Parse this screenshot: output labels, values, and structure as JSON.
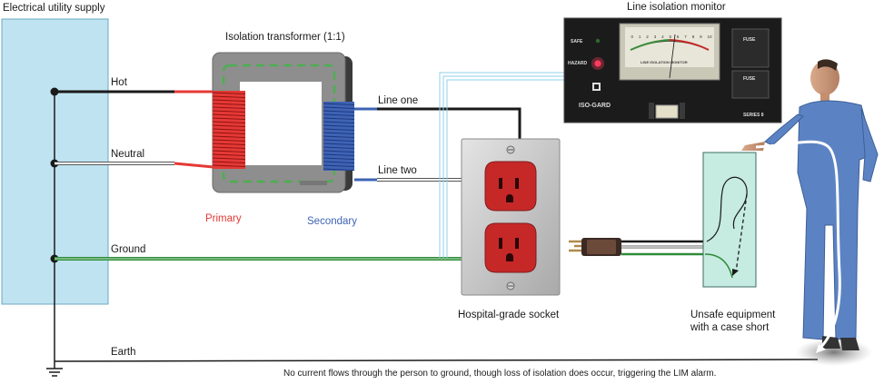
{
  "labels": {
    "utility_supply": "Electrical utility supply",
    "hot": "Hot",
    "neutral": "Neutral",
    "ground": "Ground",
    "earth": "Earth",
    "transformer": "Isolation transformer (1:1)",
    "primary": "Primary",
    "secondary": "Secondary",
    "line_one": "Line one",
    "line_two": "Line two",
    "monitor": "Line isolation monitor",
    "socket": "Hospital-grade socket",
    "equipment_line1": "Unsafe equipment",
    "equipment_line2": "with a case short",
    "caption": "No current flows through the person to ground, though loss of isolation does occur, triggering the LIM alarm."
  },
  "monitor_panel": {
    "safe": "SAFE",
    "hazard": "HAZARD",
    "brand": "ISO-GARD",
    "meter_title": "LINE ISOLATION MONITOR",
    "fuse": "FUSE",
    "series": "SERIES 8",
    "meter_scale": [
      "0",
      "1",
      "2",
      "3",
      "4",
      "5",
      "6",
      "7",
      "8",
      "9",
      "10"
    ]
  },
  "colors": {
    "supply_box": "#bfe3f0",
    "primary_coil": "#e53935",
    "secondary_coil": "#3e63b5",
    "ground_wire": "#2e8b3a",
    "equipment_case": "#c6ebe0"
  }
}
